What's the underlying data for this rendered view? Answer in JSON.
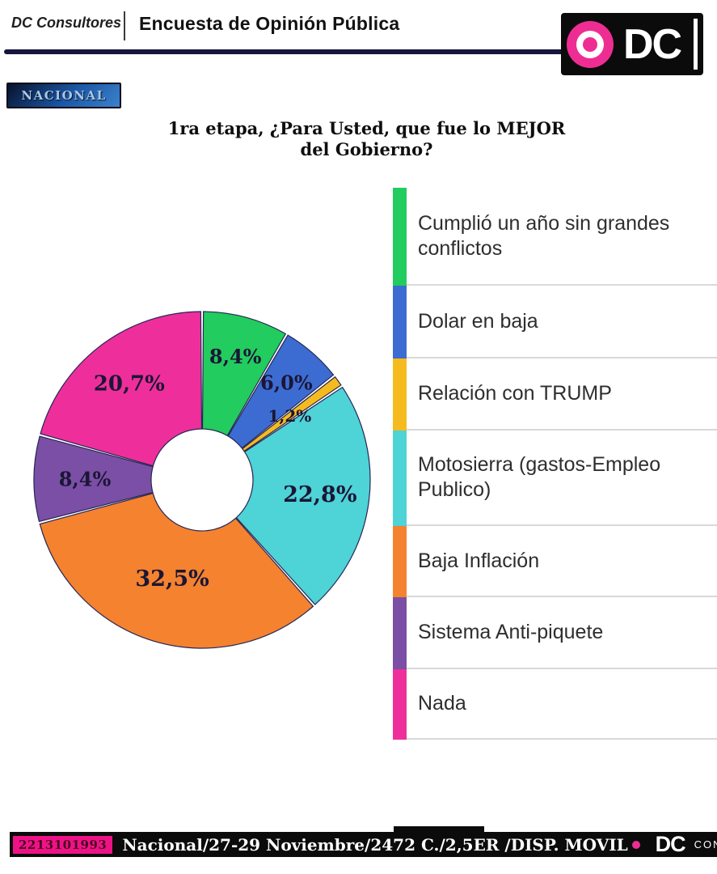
{
  "header": {
    "brand": "DC Consultores",
    "title": "Encuesta de Opinión Pública",
    "logo_text": "DC",
    "region_label": "NACIONAL"
  },
  "question": {
    "line1": "1ra etapa, ¿Para Usted, que fue lo MEJOR",
    "line2": "del Gobierno?"
  },
  "chart_data": {
    "type": "pie",
    "donut": true,
    "title": "1ra etapa, ¿Para Usted, que fue lo MEJOR del Gobierno?",
    "start_angle_deg": 0,
    "direction": "clockwise",
    "categories": [
      "Cumplió un año sin grandes conflictos",
      "Dolar en baja",
      "Relación con TRUMP",
      "Motosierra (gastos-Empleo Publico)",
      "Baja Inflación",
      "Sistema Anti-piquete",
      "Nada"
    ],
    "values": [
      8.4,
      6.0,
      1.2,
      22.8,
      32.5,
      8.4,
      20.7
    ],
    "value_labels": [
      "8,4%",
      "6,0%",
      "1,2%",
      "22,8%",
      "32,5%",
      "8,4%",
      "20,7%"
    ],
    "colors": [
      "#22cc5e",
      "#3c6cd2",
      "#f5bb1e",
      "#4ed3d6",
      "#f5822f",
      "#7b4fa5",
      "#ee2f9b"
    ],
    "legend_position": "right",
    "legend_divider_color": "#d9d9d9"
  },
  "footer": {
    "phone": "2213101993",
    "info": "Nacional/27-29 Noviembre/2472 C./2,5ER /DISP. MOVIL",
    "logo_text": "DC",
    "logo_sub": "CONSULTORES"
  },
  "theme": {
    "header_rule": "#15153d",
    "footer_bar": "#0b0b0b",
    "brand_pink": "#ee2d93",
    "badge_pink": "#ef1287"
  }
}
